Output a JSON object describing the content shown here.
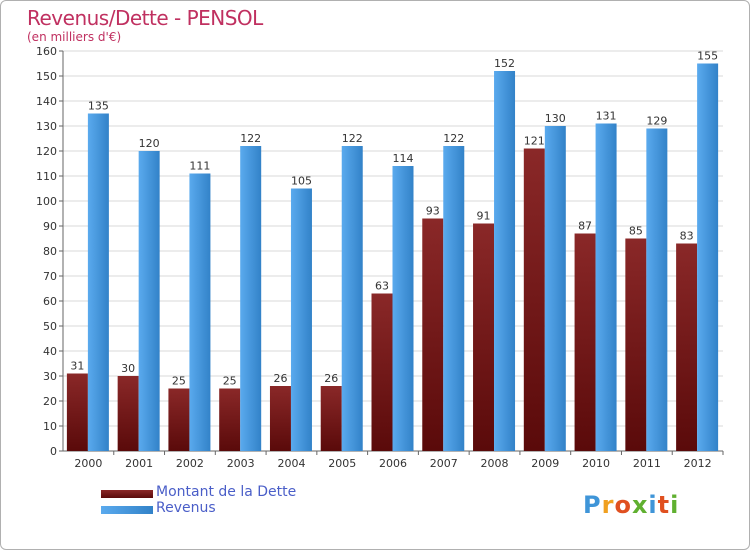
{
  "title": "Revenus/Dette - PENSOL",
  "subtitle": "(en milliers d'€)",
  "colors": {
    "dette": "#7a1c1c",
    "revenus": "#3f95d8",
    "title": "#c03060",
    "legend_text": "#4a5ec8"
  },
  "legend": {
    "dette_label": "Montant de la Dette",
    "revenus_label": "Revenus"
  },
  "logo": {
    "text": "Proxiti"
  },
  "chart_data": {
    "type": "bar",
    "title": "Revenus/Dette - PENSOL",
    "subtitle": "(en milliers d'€)",
    "xlabel": "",
    "ylabel": "",
    "ylim": [
      0,
      160
    ],
    "yticks": [
      0,
      10,
      20,
      30,
      40,
      50,
      60,
      70,
      80,
      90,
      100,
      110,
      120,
      130,
      140,
      150,
      160
    ],
    "grid": true,
    "legend_position": "bottom-left",
    "categories": [
      "2000",
      "2001",
      "2002",
      "2003",
      "2004",
      "2005",
      "2006",
      "2007",
      "2008",
      "2009",
      "2010",
      "2011",
      "2012"
    ],
    "series": [
      {
        "name": "Montant de la Dette",
        "color": "#7a1c1c",
        "values": [
          31,
          30,
          25,
          25,
          26,
          26,
          63,
          93,
          91,
          121,
          87,
          85,
          83
        ]
      },
      {
        "name": "Revenus",
        "color": "#3f95d8",
        "values": [
          135,
          120,
          111,
          122,
          105,
          122,
          114,
          122,
          152,
          130,
          131,
          129,
          155
        ]
      }
    ]
  }
}
